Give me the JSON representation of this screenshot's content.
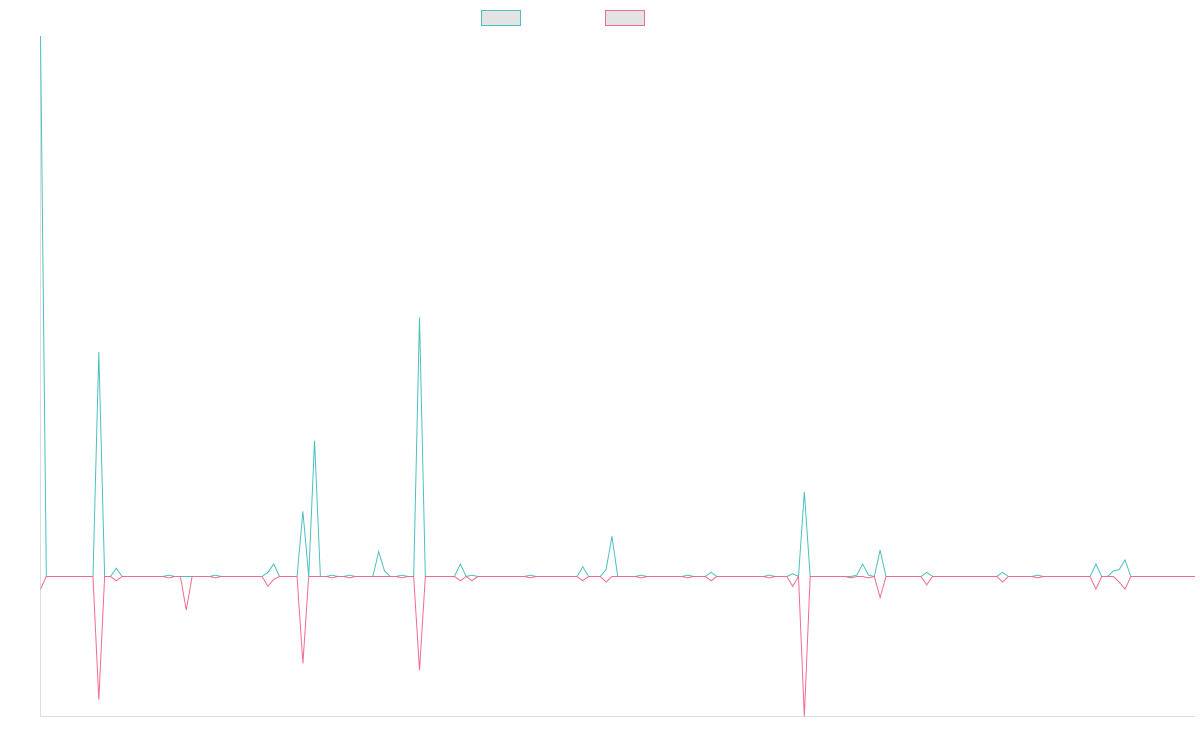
{
  "chart_data": {
    "type": "line",
    "title": "",
    "xlabel": "",
    "ylabel": "",
    "grid": false,
    "legend_position": "top-center",
    "x_count": 198,
    "ylim": [
      -1.0,
      3.9
    ],
    "series": [
      {
        "color": "#4bc0c0",
        "legend_fill": "#e3e3e3",
        "points": [
          [
            0,
            3.9
          ],
          [
            1,
            0.0
          ],
          [
            9,
            0.0
          ],
          [
            10,
            1.62
          ],
          [
            11,
            0.0
          ],
          [
            12,
            0.0
          ],
          [
            13,
            0.06
          ],
          [
            14,
            0.0
          ],
          [
            21,
            0.0
          ],
          [
            22,
            0.01
          ],
          [
            23,
            0.0
          ],
          [
            29,
            0.0
          ],
          [
            30,
            0.01
          ],
          [
            31,
            0.0
          ],
          [
            38,
            0.0
          ],
          [
            39,
            0.03
          ],
          [
            40,
            0.09
          ],
          [
            41,
            0.0
          ],
          [
            44,
            0.0
          ],
          [
            45,
            0.47
          ],
          [
            46,
            0.0
          ],
          [
            47,
            0.98
          ],
          [
            48,
            0.0
          ],
          [
            49,
            0.0
          ],
          [
            50,
            0.01
          ],
          [
            51,
            0.0
          ],
          [
            52,
            0.0
          ],
          [
            53,
            0.01
          ],
          [
            54,
            0.0
          ],
          [
            57,
            0.0
          ],
          [
            58,
            0.18
          ],
          [
            59,
            0.04
          ],
          [
            60,
            0.0
          ],
          [
            61,
            0.0
          ],
          [
            62,
            0.01
          ],
          [
            63,
            0.0
          ],
          [
            64,
            0.0
          ],
          [
            65,
            1.87
          ],
          [
            66,
            0.0
          ],
          [
            71,
            0.0
          ],
          [
            72,
            0.09
          ],
          [
            73,
            0.0
          ],
          [
            74,
            0.01
          ],
          [
            75,
            0.0
          ],
          [
            83,
            0.0
          ],
          [
            84,
            0.01
          ],
          [
            85,
            0.0
          ],
          [
            92,
            0.0
          ],
          [
            93,
            0.07
          ],
          [
            94,
            0.0
          ],
          [
            96,
            0.0
          ],
          [
            97,
            0.05
          ],
          [
            98,
            0.29
          ],
          [
            99,
            0.0
          ],
          [
            102,
            0.0
          ],
          [
            103,
            0.01
          ],
          [
            104,
            0.0
          ],
          [
            110,
            0.0
          ],
          [
            111,
            0.01
          ],
          [
            112,
            0.0
          ],
          [
            114,
            0.0
          ],
          [
            115,
            0.03
          ],
          [
            116,
            0.0
          ],
          [
            124,
            0.0
          ],
          [
            125,
            0.01
          ],
          [
            126,
            0.0
          ],
          [
            128,
            0.0
          ],
          [
            129,
            0.02
          ],
          [
            130,
            0.0
          ],
          [
            131,
            0.61
          ],
          [
            132,
            0.0
          ],
          [
            139,
            0.0
          ],
          [
            140,
            0.01
          ],
          [
            141,
            0.09
          ],
          [
            142,
            0.01
          ],
          [
            143,
            0.0
          ],
          [
            144,
            0.19
          ],
          [
            145,
            0.0
          ],
          [
            151,
            0.0
          ],
          [
            152,
            0.03
          ],
          [
            153,
            0.0
          ],
          [
            164,
            0.0
          ],
          [
            165,
            0.03
          ],
          [
            166,
            0.0
          ],
          [
            170,
            0.0
          ],
          [
            171,
            0.01
          ],
          [
            172,
            0.0
          ],
          [
            180,
            0.0
          ],
          [
            181,
            0.09
          ],
          [
            182,
            0.0
          ],
          [
            183,
            0.0
          ],
          [
            184,
            0.04
          ],
          [
            185,
            0.05
          ],
          [
            186,
            0.12
          ],
          [
            187,
            0.0
          ],
          [
            198,
            0.0
          ]
        ]
      },
      {
        "color": "#f06c8f",
        "legend_fill": "#e3e3e3",
        "points": [
          [
            0,
            -0.09
          ],
          [
            1,
            0.0
          ],
          [
            9,
            0.0
          ],
          [
            10,
            -0.88
          ],
          [
            11,
            0.0
          ],
          [
            12,
            0.0
          ],
          [
            13,
            -0.03
          ],
          [
            14,
            0.0
          ],
          [
            21,
            0.0
          ],
          [
            22,
            -0.01
          ],
          [
            23,
            0.0
          ],
          [
            24,
            0.0
          ],
          [
            25,
            -0.24
          ],
          [
            26,
            0.0
          ],
          [
            29,
            0.0
          ],
          [
            30,
            -0.01
          ],
          [
            31,
            0.0
          ],
          [
            38,
            0.0
          ],
          [
            39,
            -0.07
          ],
          [
            40,
            -0.02
          ],
          [
            41,
            0.0
          ],
          [
            44,
            0.0
          ],
          [
            45,
            -0.62
          ],
          [
            46,
            0.0
          ],
          [
            49,
            0.0
          ],
          [
            50,
            -0.01
          ],
          [
            51,
            0.0
          ],
          [
            52,
            0.0
          ],
          [
            53,
            -0.01
          ],
          [
            54,
            0.0
          ],
          [
            61,
            0.0
          ],
          [
            62,
            -0.01
          ],
          [
            63,
            0.0
          ],
          [
            64,
            0.0
          ],
          [
            65,
            -0.67
          ],
          [
            66,
            0.0
          ],
          [
            71,
            0.0
          ],
          [
            72,
            -0.03
          ],
          [
            73,
            0.0
          ],
          [
            74,
            -0.03
          ],
          [
            75,
            0.0
          ],
          [
            83,
            0.0
          ],
          [
            84,
            -0.01
          ],
          [
            85,
            0.0
          ],
          [
            92,
            0.0
          ],
          [
            93,
            -0.03
          ],
          [
            94,
            0.0
          ],
          [
            96,
            0.0
          ],
          [
            97,
            -0.04
          ],
          [
            98,
            0.0
          ],
          [
            102,
            0.0
          ],
          [
            103,
            -0.01
          ],
          [
            104,
            0.0
          ],
          [
            110,
            0.0
          ],
          [
            111,
            -0.01
          ],
          [
            112,
            0.0
          ],
          [
            114,
            0.0
          ],
          [
            115,
            -0.03
          ],
          [
            116,
            0.0
          ],
          [
            124,
            0.0
          ],
          [
            125,
            -0.01
          ],
          [
            126,
            0.0
          ],
          [
            128,
            0.0
          ],
          [
            129,
            -0.07
          ],
          [
            130,
            0.0
          ],
          [
            131,
            -1.0
          ],
          [
            132,
            0.0
          ],
          [
            138,
            0.0
          ],
          [
            139,
            -0.01
          ],
          [
            140,
            0.0
          ],
          [
            141,
            0.0
          ],
          [
            142,
            -0.01
          ],
          [
            143,
            0.0
          ],
          [
            144,
            -0.15
          ],
          [
            145,
            0.0
          ],
          [
            151,
            0.0
          ],
          [
            152,
            -0.06
          ],
          [
            153,
            0.0
          ],
          [
            164,
            0.0
          ],
          [
            165,
            -0.04
          ],
          [
            166,
            0.0
          ],
          [
            170,
            0.0
          ],
          [
            171,
            -0.01
          ],
          [
            172,
            0.0
          ],
          [
            180,
            0.0
          ],
          [
            181,
            -0.09
          ],
          [
            182,
            0.0
          ],
          [
            184,
            0.0
          ],
          [
            185,
            -0.04
          ],
          [
            186,
            -0.09
          ],
          [
            187,
            0.0
          ],
          [
            198,
            0.0
          ]
        ]
      }
    ]
  }
}
